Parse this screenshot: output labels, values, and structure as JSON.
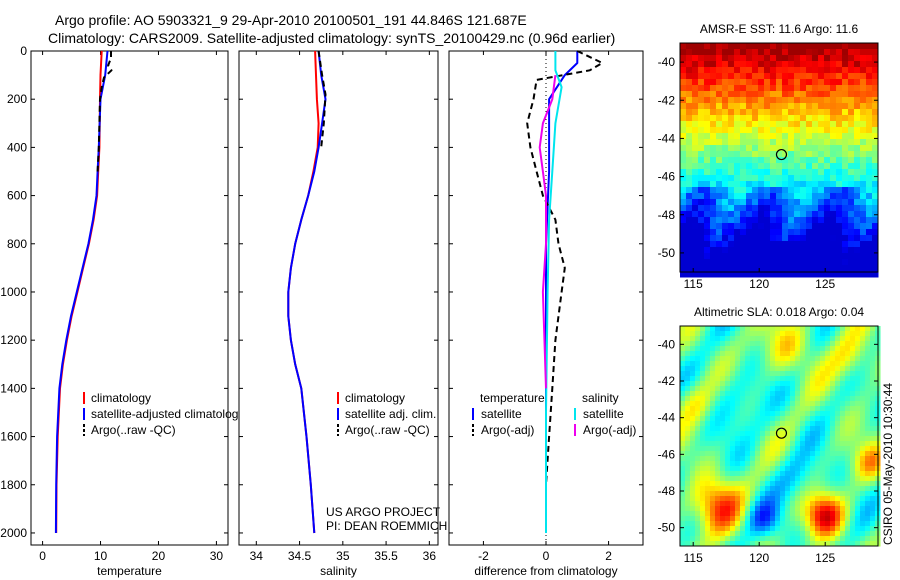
{
  "header": {
    "line1": "Argo profile: AO 5903321_9 29-Apr-2010 20100501_191 44.846S 121.687E",
    "line2": "Climatology: CARS2009. Satellite-adjusted climatology: synTS_20100429.nc (0.96d earlier)"
  },
  "side_text": "CSIRO 05-May-2010 10:30:44",
  "credits": {
    "line1": "US ARGO PROJECT",
    "line2": "PI: DEAN ROEMMICH"
  },
  "colors": {
    "red": "#ff0000",
    "blue": "#0000ff",
    "black": "#000000",
    "cyan": "#00e5ee",
    "magenta": "#ee00ee"
  },
  "chart_data": [
    {
      "type": "line",
      "id": "temperature",
      "xlabel": "temperature",
      "ylabel": "",
      "xlim": [
        -2,
        32
      ],
      "ylim": [
        2050,
        0
      ],
      "xticks": [
        "0",
        "10",
        "20",
        "30"
      ],
      "xtick_values": [
        0,
        10,
        20,
        30
      ],
      "yticks": [
        "0",
        "200",
        "400",
        "600",
        "800",
        "1000",
        "1200",
        "1400",
        "1600",
        "1800",
        "2000"
      ],
      "legend": [
        "climatology",
        "satellite-adjusted climatology",
        "Argo(..raw -QC)"
      ],
      "series": [
        {
          "name": "climatology",
          "color": "red",
          "dash": false,
          "x": [
            10.2,
            10.0,
            9.9,
            9.8,
            9.6,
            9.4,
            8.8,
            8.0,
            7.0,
            6.0,
            5.0,
            4.2,
            3.5,
            3.0,
            2.6,
            2.4,
            2.35
          ],
          "y": [
            0,
            100,
            200,
            400,
            500,
            600,
            700,
            800,
            900,
            1000,
            1100,
            1200,
            1300,
            1400,
            1600,
            1800,
            2000
          ]
        },
        {
          "name": "satellite-adjusted climatology",
          "color": "blue",
          "dash": false,
          "x": [
            11.2,
            10.8,
            10.0,
            9.7,
            9.5,
            9.3,
            8.7,
            7.9,
            6.9,
            5.9,
            4.9,
            4.1,
            3.4,
            2.9,
            2.5,
            2.35,
            2.3
          ],
          "y": [
            0,
            100,
            200,
            400,
            500,
            600,
            700,
            800,
            900,
            1000,
            1100,
            1200,
            1300,
            1400,
            1600,
            1800,
            2000
          ]
        },
        {
          "name": "Argo(..raw -QC)",
          "color": "black",
          "dash": true,
          "x": [
            11.8,
            11.8,
            11.3,
            11.9,
            10.6,
            10.2,
            9.9,
            9.7,
            9.5
          ],
          "y": [
            0,
            30,
            60,
            80,
            110,
            150,
            200,
            400,
            500
          ]
        }
      ]
    },
    {
      "type": "line",
      "id": "salinity",
      "xlabel": "salinity",
      "ylabel": "",
      "xlim": [
        33.8,
        36.1
      ],
      "ylim": [
        2050,
        0
      ],
      "xticks": [
        "34",
        "34.5",
        "35",
        "35.5",
        "36"
      ],
      "xtick_values": [
        34,
        34.5,
        35,
        35.5,
        36
      ],
      "yticks": [],
      "legend": [
        "climatology",
        "satellite adj. clim.",
        "Argo(..raw -QC)"
      ],
      "series": [
        {
          "name": "climatology",
          "color": "red",
          "dash": false,
          "x": [
            34.68,
            34.69,
            34.7,
            34.72,
            34.71,
            34.66,
            34.6,
            34.52,
            34.45,
            34.4,
            34.37,
            34.37,
            34.4,
            34.45,
            34.52,
            34.58,
            34.63,
            34.67
          ],
          "y": [
            0,
            100,
            200,
            300,
            400,
            500,
            600,
            700,
            800,
            900,
            1000,
            1100,
            1200,
            1300,
            1400,
            1600,
            1800,
            2000
          ]
        },
        {
          "name": "satellite adj. clim.",
          "color": "blue",
          "dash": false,
          "x": [
            34.72,
            34.75,
            34.8,
            34.76,
            34.72,
            34.67,
            34.6,
            34.52,
            34.45,
            34.4,
            34.37,
            34.37,
            34.4,
            34.45,
            34.52,
            34.58,
            34.63,
            34.67
          ],
          "y": [
            0,
            100,
            200,
            300,
            400,
            500,
            600,
            700,
            800,
            900,
            1000,
            1100,
            1200,
            1300,
            1400,
            1600,
            1800,
            2000
          ]
        },
        {
          "name": "Argo(..raw -QC)",
          "color": "black",
          "dash": true,
          "x": [
            34.72,
            34.76,
            34.8,
            34.78,
            34.75
          ],
          "y": [
            0,
            100,
            180,
            300,
            400
          ]
        }
      ]
    },
    {
      "type": "line",
      "id": "difference",
      "xlabel": "difference from climatology",
      "ylabel": "",
      "xlim": [
        -3.1,
        3.1
      ],
      "ylim": [
        2050,
        0
      ],
      "xticks": [
        "-2",
        "0",
        "2"
      ],
      "xtick_values": [
        -2,
        0,
        2
      ],
      "yticks": [],
      "legend_titles": [
        "temperature",
        "salinity"
      ],
      "legend": [
        "satellite",
        "Argo(-adj)",
        "satellite",
        "Argo(-adj)"
      ],
      "series": [
        {
          "name": "temperature satellite",
          "color": "blue",
          "dash": false,
          "x": [
            1.0,
            1.0,
            0.6,
            0.1,
            0.1,
            0.1,
            0.0,
            0.0
          ],
          "y": [
            0,
            50,
            100,
            200,
            300,
            500,
            800,
            2000
          ]
        },
        {
          "name": "temperature Argo(-adj)",
          "color": "black",
          "dash": true,
          "x": [
            1.0,
            1.8,
            1.4,
            -0.3,
            -0.4,
            -0.6,
            -0.5,
            -0.3,
            -0.1,
            0.3,
            0.4,
            0.6,
            0.5,
            0.3,
            0.2,
            0.1,
            0.0
          ],
          "y": [
            0,
            50,
            80,
            120,
            200,
            300,
            400,
            500,
            600,
            700,
            800,
            900,
            1000,
            1200,
            1400,
            1600,
            1800
          ]
        },
        {
          "name": "salinity satellite",
          "color": "cyan",
          "dash": false,
          "x": [
            0.3,
            0.3,
            0.5,
            0.3,
            0.2,
            0.1,
            0.05,
            0.0,
            0.0
          ],
          "y": [
            0,
            80,
            150,
            300,
            500,
            700,
            1000,
            1500,
            2000
          ]
        },
        {
          "name": "salinity Argo(-adj)",
          "color": "magenta",
          "dash": false,
          "x": [
            0.3,
            0.2,
            -0.1,
            -0.2,
            -0.1,
            0.0,
            0.0,
            -0.1,
            0.0
          ],
          "y": [
            100,
            200,
            300,
            400,
            500,
            600,
            800,
            1000,
            1400
          ]
        }
      ]
    },
    {
      "type": "heatmap",
      "id": "sst_map",
      "title": "AMSR-E SST: 11.6 Argo: 11.6",
      "xlim": [
        114,
        129
      ],
      "ylim": [
        -51,
        -39
      ],
      "xticks": [
        "115",
        "120",
        "125"
      ],
      "xtick_values": [
        115,
        120,
        125
      ],
      "yticks": [
        "-40",
        "-42",
        "-44",
        "-46",
        "-48",
        "-50"
      ],
      "ytick_values": [
        -40,
        -42,
        -44,
        -46,
        -48,
        -50
      ],
      "marker": {
        "lon": 121.687,
        "lat": -44.846
      },
      "value_range": [
        5,
        16
      ]
    },
    {
      "type": "heatmap",
      "id": "sla_map",
      "title": "Altimetric SLA: 0.018 Argo: 0.04",
      "xlim": [
        114,
        129
      ],
      "ylim": [
        -51,
        -39
      ],
      "xticks": [
        "115",
        "120",
        "125"
      ],
      "xtick_values": [
        115,
        120,
        125
      ],
      "yticks": [
        "-40",
        "-42",
        "-44",
        "-46",
        "-48",
        "-50"
      ],
      "ytick_values": [
        -40,
        -42,
        -44,
        -46,
        -48,
        -50
      ],
      "marker": {
        "lon": 121.687,
        "lat": -44.846
      },
      "value_range": [
        -0.3,
        0.3
      ]
    }
  ]
}
